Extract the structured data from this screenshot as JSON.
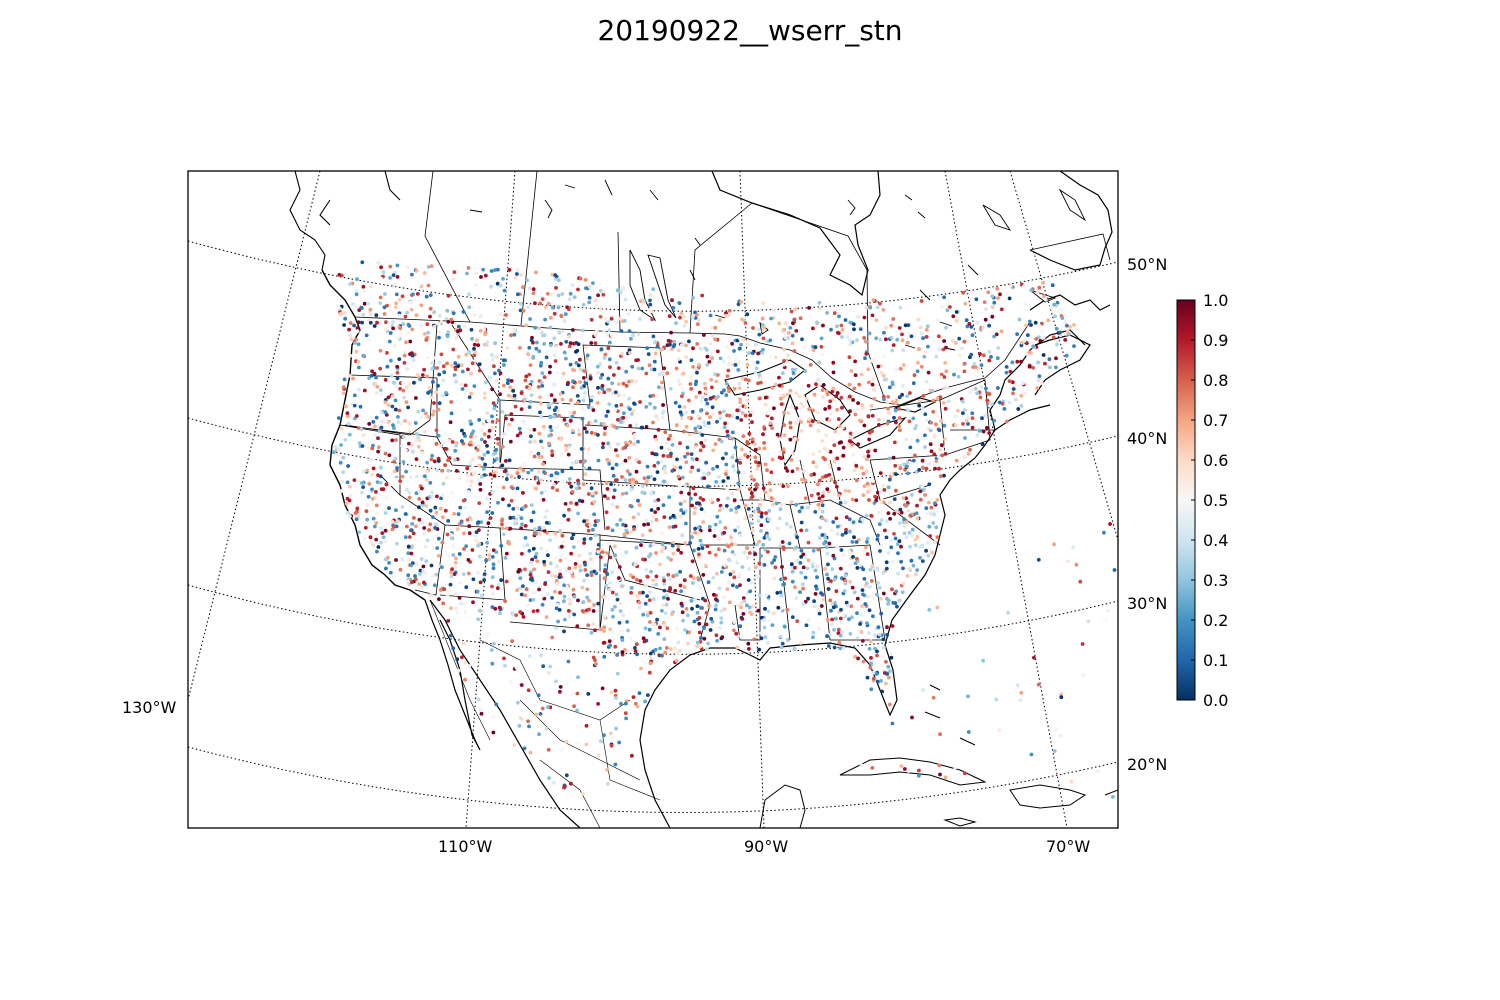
{
  "title": "20190922__wserr_stn",
  "map": {
    "projection": "lambert-conformal",
    "region": "CONUS, southern Canada, northern Mexico, Caribbean",
    "lat_labels": [
      {
        "text": "50°N",
        "lat": 50
      },
      {
        "text": "40°N",
        "lat": 40
      },
      {
        "text": "30°N",
        "lat": 30
      },
      {
        "text": "20°N",
        "lat": 20
      }
    ],
    "lon_labels": [
      {
        "text": "130°W",
        "lon": -130
      },
      {
        "text": "110°W",
        "lon": -110
      },
      {
        "text": "90°W",
        "lon": -90
      },
      {
        "text": "70°W",
        "lon": -70
      }
    ],
    "gridline_style": "dotted",
    "point_variable": "wserr_stn"
  },
  "colorbar": {
    "colormap": "RdBu_r",
    "min": 0.0,
    "max": 1.0,
    "ticks": [
      "0.0",
      "0.1",
      "0.2",
      "0.3",
      "0.4",
      "0.5",
      "0.6",
      "0.7",
      "0.8",
      "0.9",
      "1.0"
    ],
    "stops": [
      "#053061",
      "#2166ac",
      "#4393c3",
      "#92c5de",
      "#d1e5f0",
      "#f7f7f7",
      "#fddbc7",
      "#f4a582",
      "#d6604d",
      "#b2182b",
      "#67001f"
    ]
  }
}
